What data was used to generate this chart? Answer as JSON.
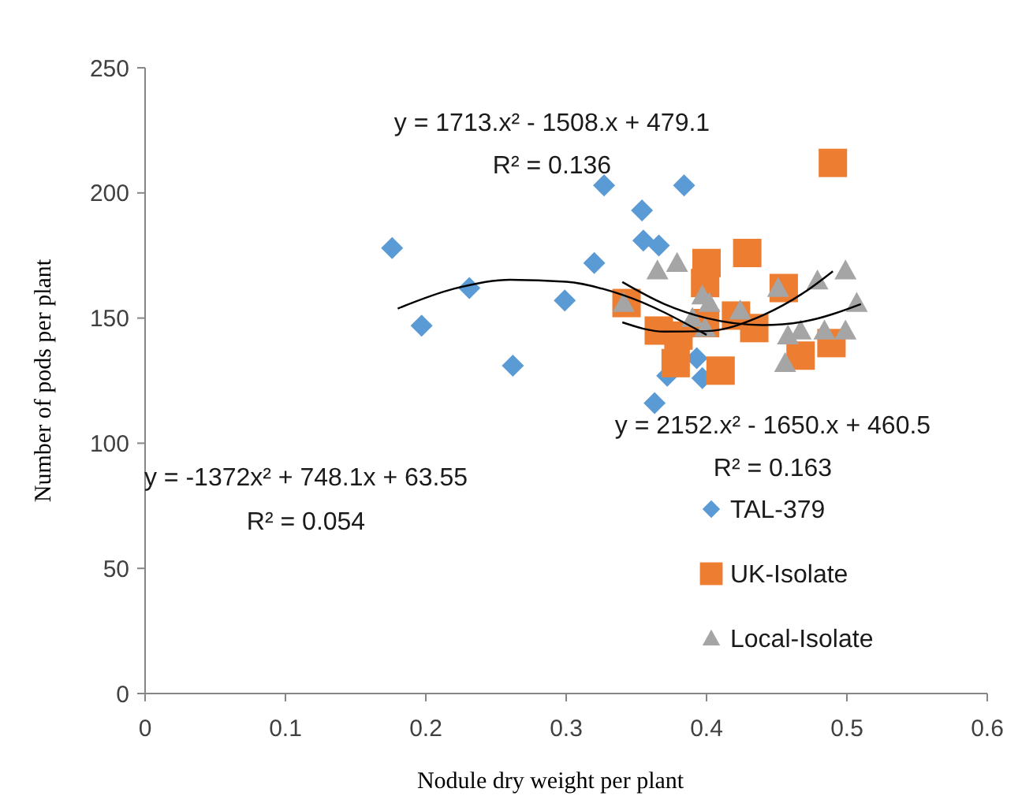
{
  "chart_data": {
    "type": "scatter",
    "xlabel": "Nodule dry weight per plant",
    "ylabel": "Number of pods per plant",
    "xlim": [
      0,
      0.6
    ],
    "ylim": [
      0,
      250
    ],
    "xticks": [
      0,
      0.1,
      0.2,
      0.3,
      0.4,
      0.5,
      0.6
    ],
    "yticks": [
      0,
      50,
      100,
      150,
      200,
      250
    ],
    "grid": false,
    "legend": "right",
    "annotations": [
      "y = 1713.x² - 1508.x + 479.1",
      "R² = 0.136",
      "y = 2152.x² - 1650.x + 460.5",
      "R² = 0.163",
      "y = -1372x² + 748.1x + 63.55",
      "R² = 0.054"
    ],
    "series": [
      {
        "name": "TAL-379",
        "color": "#5b9bd5",
        "marker": "diamond",
        "x": [
          0.176,
          0.197,
          0.231,
          0.262,
          0.299,
          0.32,
          0.327,
          0.354,
          0.355,
          0.366,
          0.384,
          0.363,
          0.372,
          0.393,
          0.397
        ],
        "values": [
          178,
          147,
          162,
          131,
          157,
          172,
          203,
          193,
          181,
          179,
          203,
          116,
          127,
          134,
          126
        ]
      },
      {
        "name": "UK-Isolate",
        "color": "#ed7d31",
        "marker": "square",
        "x": [
          0.49,
          0.4,
          0.429,
          0.343,
          0.399,
          0.366,
          0.38,
          0.399,
          0.421,
          0.434,
          0.455,
          0.378,
          0.41,
          0.467,
          0.489
        ],
        "values": [
          212,
          172,
          176,
          156,
          164,
          145,
          143,
          148,
          151,
          146,
          162,
          132,
          129,
          135,
          140
        ]
      },
      {
        "name": "Local-Isolate",
        "color": "#a5a5a5",
        "marker": "triangle",
        "x": [
          0.365,
          0.379,
          0.341,
          0.397,
          0.402,
          0.39,
          0.399,
          0.424,
          0.451,
          0.479,
          0.499,
          0.507,
          0.458,
          0.467,
          0.484,
          0.499,
          0.456
        ],
        "values": [
          169,
          172,
          156,
          159,
          156,
          150,
          146,
          153,
          162,
          165,
          169,
          156,
          143,
          145,
          145,
          145,
          132
        ]
      },
      {
        "type": "line",
        "color": "#000000",
        "marker": "none",
        "x": [
          0.18,
          0.22,
          0.26,
          0.3,
          0.34,
          0.4
        ],
        "values": [
          153.8,
          161.7,
          165.3,
          164.5,
          159.3,
          143.3
        ]
      },
      {
        "type": "line",
        "color": "#000000",
        "marker": "none",
        "x": [
          0.34,
          0.37,
          0.4,
          0.44,
          0.47,
          0.51
        ],
        "values": [
          164.4,
          155.6,
          150.0,
          147.2,
          148.7,
          155.6
        ]
      },
      {
        "type": "line",
        "color": "#000000",
        "marker": "none",
        "x": [
          0.34,
          0.37,
          0.4,
          0.44,
          0.47,
          0.49
        ],
        "values": [
          148.3,
          144.6,
          144.8,
          151.1,
          160.4,
          168.7
        ]
      }
    ]
  }
}
